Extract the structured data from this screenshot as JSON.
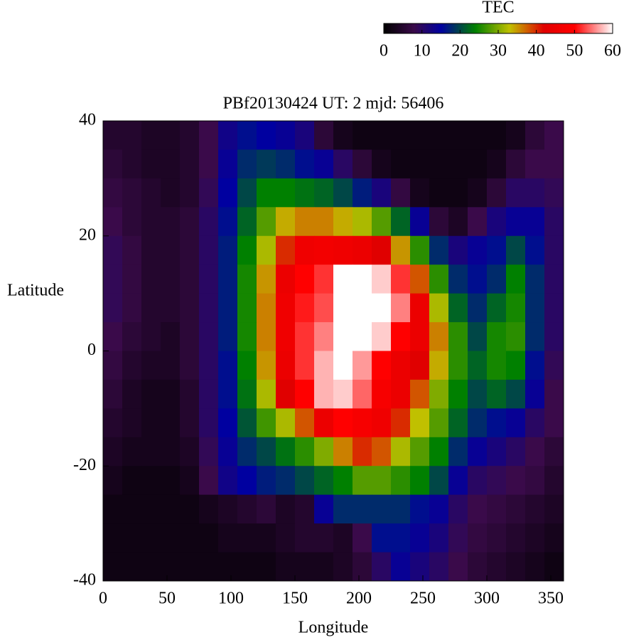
{
  "chart_data": {
    "type": "heatmap",
    "title": "PBf20130424  UT: 2  mjd: 56406",
    "xlabel": "Longitude",
    "ylabel": "Latitude",
    "colorbar_label": "TEC",
    "xlim": [
      0,
      360
    ],
    "xticks": [
      0,
      50,
      100,
      150,
      200,
      250,
      300,
      350
    ],
    "ylim": [
      -40,
      40
    ],
    "yticks": [
      -40,
      -20,
      0,
      20,
      40
    ],
    "zlim": [
      0,
      60
    ],
    "zticks": [
      0,
      10,
      20,
      30,
      40,
      50,
      60
    ],
    "colormap": [
      {
        "value": 0,
        "color": "#000000"
      },
      {
        "value": 8,
        "color": "#3a0a4a"
      },
      {
        "value": 15,
        "color": "#0000a0"
      },
      {
        "value": 24,
        "color": "#008000"
      },
      {
        "value": 33,
        "color": "#c0c000"
      },
      {
        "value": 42,
        "color": "#e00000"
      },
      {
        "value": 50,
        "color": "#ff0000"
      },
      {
        "value": 60,
        "color": "#ffffff"
      }
    ],
    "x": [
      7.5,
      22.5,
      37.5,
      52.5,
      67.5,
      82.5,
      97.5,
      112.5,
      127.5,
      142.5,
      157.5,
      172.5,
      187.5,
      202.5,
      217.5,
      232.5,
      247.5,
      262.5,
      277.5,
      292.5,
      307.5,
      322.5,
      337.5,
      352.5
    ],
    "y": [
      37.5,
      32.5,
      27.5,
      22.5,
      17.5,
      12.5,
      7.5,
      2.5,
      -2.5,
      -7.5,
      -12.5,
      -17.5,
      -22.5,
      -27.5,
      -32.5,
      -37.5
    ],
    "z": [
      [
        5,
        5,
        4,
        4,
        5,
        8,
        13,
        16,
        15,
        14,
        12,
        6,
        3,
        2,
        2,
        2,
        2,
        2,
        2,
        2,
        2,
        3,
        6,
        8
      ],
      [
        6,
        5,
        4,
        4,
        5,
        8,
        14,
        18,
        19,
        18,
        16,
        14,
        10,
        6,
        3,
        2,
        2,
        2,
        2,
        2,
        3,
        6,
        8,
        8
      ],
      [
        7,
        6,
        5,
        4,
        5,
        9,
        15,
        20,
        24,
        24,
        23,
        22,
        20,
        17,
        12,
        7,
        3,
        2,
        2,
        3,
        6,
        10,
        10,
        9
      ],
      [
        8,
        6,
        5,
        5,
        6,
        10,
        16,
        22,
        28,
        34,
        36,
        36,
        34,
        32,
        28,
        22,
        14,
        6,
        4,
        8,
        12,
        14,
        14,
        10
      ],
      [
        9,
        7,
        5,
        5,
        6,
        10,
        17,
        24,
        32,
        40,
        46,
        47,
        46,
        45,
        42,
        35,
        26,
        18,
        12,
        14,
        16,
        20,
        16,
        10
      ],
      [
        9,
        7,
        5,
        5,
        6,
        10,
        17,
        25,
        35,
        45,
        50,
        52,
        60,
        60,
        58,
        52,
        38,
        26,
        18,
        16,
        18,
        24,
        18,
        10
      ],
      [
        9,
        7,
        5,
        5,
        6,
        10,
        17,
        25,
        36,
        46,
        51,
        53,
        60,
        60,
        60,
        55,
        45,
        32,
        22,
        18,
        22,
        25,
        18,
        10
      ],
      [
        8,
        6,
        5,
        4,
        6,
        10,
        17,
        25,
        36,
        46,
        52,
        55,
        60,
        60,
        58,
        50,
        45,
        36,
        26,
        20,
        25,
        26,
        18,
        10
      ],
      [
        7,
        5,
        4,
        4,
        6,
        10,
        16,
        24,
        35,
        45,
        52,
        57,
        60,
        56,
        50,
        45,
        42,
        34,
        26,
        22,
        25,
        24,
        16,
        9
      ],
      [
        6,
        4,
        3,
        3,
        5,
        10,
        16,
        23,
        32,
        42,
        50,
        57,
        58,
        54,
        48,
        45,
        38,
        30,
        24,
        20,
        22,
        20,
        14,
        8
      ],
      [
        5,
        4,
        3,
        3,
        5,
        10,
        15,
        21,
        27,
        32,
        38,
        45,
        50,
        48,
        46,
        40,
        33,
        28,
        22,
        18,
        16,
        14,
        10,
        8
      ],
      [
        4,
        3,
        3,
        3,
        4,
        9,
        14,
        18,
        20,
        23,
        26,
        30,
        36,
        40,
        38,
        32,
        28,
        24,
        18,
        14,
        12,
        10,
        8,
        6
      ],
      [
        3,
        2,
        2,
        2,
        3,
        8,
        13,
        15,
        17,
        18,
        20,
        22,
        24,
        28,
        28,
        26,
        24,
        20,
        14,
        10,
        9,
        8,
        7,
        5
      ],
      [
        2,
        2,
        2,
        2,
        2,
        3,
        4,
        5,
        6,
        4,
        5,
        14,
        18,
        18,
        18,
        18,
        16,
        14,
        10,
        8,
        7,
        6,
        5,
        4
      ],
      [
        2,
        2,
        2,
        2,
        2,
        2,
        3,
        3,
        3,
        4,
        5,
        5,
        4,
        8,
        16,
        16,
        14,
        12,
        9,
        7,
        6,
        5,
        4,
        3
      ],
      [
        2,
        2,
        2,
        2,
        2,
        2,
        2,
        2,
        2,
        3,
        3,
        3,
        4,
        6,
        10,
        14,
        12,
        10,
        8,
        6,
        5,
        4,
        3,
        2
      ]
    ]
  }
}
